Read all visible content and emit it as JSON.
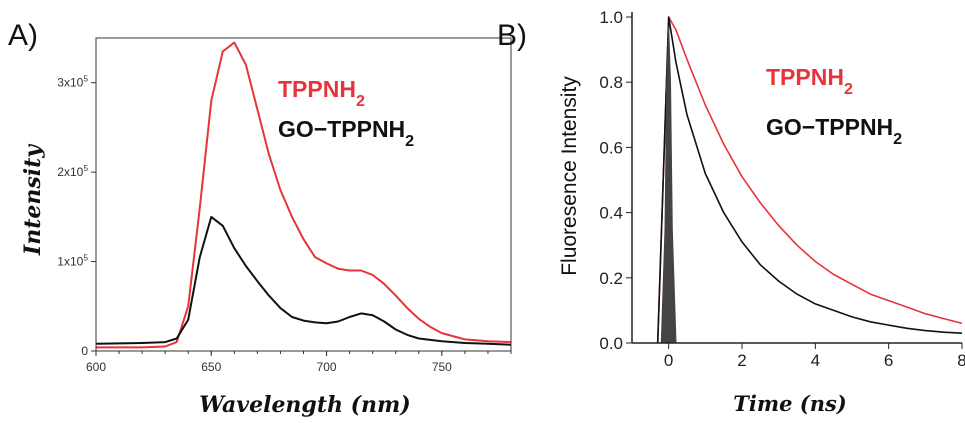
{
  "chart_data": [
    {
      "panel_label": "A)",
      "type": "line",
      "xlabel": "Wavelength (nm)",
      "ylabel": "Intensity",
      "xlim": [
        600,
        780
      ],
      "ylim": [
        0,
        350000
      ],
      "x_ticks": [
        600,
        650,
        700,
        750
      ],
      "y_ticks": [
        {
          "value": 0,
          "label": "0"
        },
        {
          "value": 100000,
          "label": "1x10^5"
        },
        {
          "value": 200000,
          "label": "2x10^5"
        },
        {
          "value": 300000,
          "label": "3x10^5"
        }
      ],
      "legend": [
        {
          "label": "TPPNH2",
          "color": "#e8333a"
        },
        {
          "label": "GO−TPPNH2",
          "color": "#111111"
        }
      ],
      "series": [
        {
          "name": "TPPNH2",
          "color": "#e8333a",
          "points": [
            [
              600,
              4000
            ],
            [
              620,
              4000
            ],
            [
              630,
              5000
            ],
            [
              635,
              10000
            ],
            [
              640,
              50000
            ],
            [
              645,
              160000
            ],
            [
              650,
              280000
            ],
            [
              655,
              335000
            ],
            [
              660,
              345000
            ],
            [
              665,
              320000
            ],
            [
              670,
              270000
            ],
            [
              675,
              220000
            ],
            [
              680,
              180000
            ],
            [
              685,
              150000
            ],
            [
              690,
              125000
            ],
            [
              695,
              105000
            ],
            [
              700,
              98000
            ],
            [
              705,
              92000
            ],
            [
              710,
              90000
            ],
            [
              715,
              90000
            ],
            [
              720,
              85000
            ],
            [
              725,
              75000
            ],
            [
              730,
              62000
            ],
            [
              735,
              48000
            ],
            [
              740,
              36000
            ],
            [
              745,
              27000
            ],
            [
              750,
              20000
            ],
            [
              760,
              13000
            ],
            [
              770,
              11000
            ],
            [
              780,
              10000
            ]
          ]
        },
        {
          "name": "GO−TPPNH2",
          "color": "#111111",
          "points": [
            [
              600,
              8000
            ],
            [
              620,
              9000
            ],
            [
              630,
              10000
            ],
            [
              635,
              14000
            ],
            [
              640,
              35000
            ],
            [
              645,
              105000
            ],
            [
              650,
              150000
            ],
            [
              655,
              140000
            ],
            [
              660,
              115000
            ],
            [
              665,
              95000
            ],
            [
              670,
              78000
            ],
            [
              675,
              62000
            ],
            [
              680,
              48000
            ],
            [
              685,
              38000
            ],
            [
              690,
              34000
            ],
            [
              695,
              32000
            ],
            [
              700,
              31000
            ],
            [
              705,
              33000
            ],
            [
              710,
              38000
            ],
            [
              715,
              42000
            ],
            [
              720,
              40000
            ],
            [
              725,
              33000
            ],
            [
              730,
              24000
            ],
            [
              735,
              18000
            ],
            [
              740,
              14000
            ],
            [
              750,
              11000
            ],
            [
              760,
              9000
            ],
            [
              770,
              8000
            ],
            [
              780,
              7000
            ]
          ]
        }
      ]
    },
    {
      "panel_label": "B)",
      "type": "line",
      "xlabel": "Time (ns)",
      "ylabel": "Fluoresence Intensity",
      "xlim": [
        -1,
        8
      ],
      "ylim": [
        0,
        1.0
      ],
      "x_ticks": [
        0,
        2,
        4,
        6,
        8
      ],
      "y_ticks": [
        0.0,
        0.2,
        0.4,
        0.6,
        0.8,
        1.0
      ],
      "legend": [
        {
          "label": "TPPNH2",
          "color": "#e8333a"
        },
        {
          "label": "GO−TPPNH2",
          "color": "#111111"
        }
      ],
      "series": [
        {
          "name": "TPPNH2",
          "color": "#e8333a",
          "points": [
            [
              -0.3,
              0.0
            ],
            [
              -0.15,
              0.5
            ],
            [
              0.0,
              1.0
            ],
            [
              0.2,
              0.96
            ],
            [
              0.5,
              0.87
            ],
            [
              1.0,
              0.73
            ],
            [
              1.5,
              0.61
            ],
            [
              2.0,
              0.51
            ],
            [
              2.5,
              0.43
            ],
            [
              3.0,
              0.36
            ],
            [
              3.5,
              0.3
            ],
            [
              4.0,
              0.25
            ],
            [
              4.5,
              0.21
            ],
            [
              5.0,
              0.18
            ],
            [
              5.5,
              0.15
            ],
            [
              6.0,
              0.13
            ],
            [
              6.5,
              0.11
            ],
            [
              7.0,
              0.09
            ],
            [
              7.5,
              0.075
            ],
            [
              8.0,
              0.06
            ]
          ]
        },
        {
          "name": "GO−TPPNH2",
          "color": "#111111",
          "points": [
            [
              -0.3,
              0.0
            ],
            [
              -0.15,
              0.5
            ],
            [
              0.0,
              1.0
            ],
            [
              0.2,
              0.86
            ],
            [
              0.5,
              0.7
            ],
            [
              1.0,
              0.52
            ],
            [
              1.5,
              0.4
            ],
            [
              2.0,
              0.31
            ],
            [
              2.5,
              0.24
            ],
            [
              3.0,
              0.19
            ],
            [
              3.5,
              0.15
            ],
            [
              4.0,
              0.12
            ],
            [
              4.5,
              0.1
            ],
            [
              5.0,
              0.08
            ],
            [
              5.5,
              0.065
            ],
            [
              6.0,
              0.055
            ],
            [
              6.5,
              0.045
            ],
            [
              7.0,
              0.038
            ],
            [
              7.5,
              0.033
            ],
            [
              8.0,
              0.03
            ]
          ]
        },
        {
          "name": "IRF",
          "color": "#444444",
          "fill": true,
          "points": [
            [
              -0.2,
              0.0
            ],
            [
              -0.1,
              0.35
            ],
            [
              -0.05,
              0.8
            ],
            [
              0.0,
              0.97
            ],
            [
              0.05,
              0.8
            ],
            [
              0.1,
              0.35
            ],
            [
              0.2,
              0.0
            ]
          ]
        }
      ]
    }
  ]
}
